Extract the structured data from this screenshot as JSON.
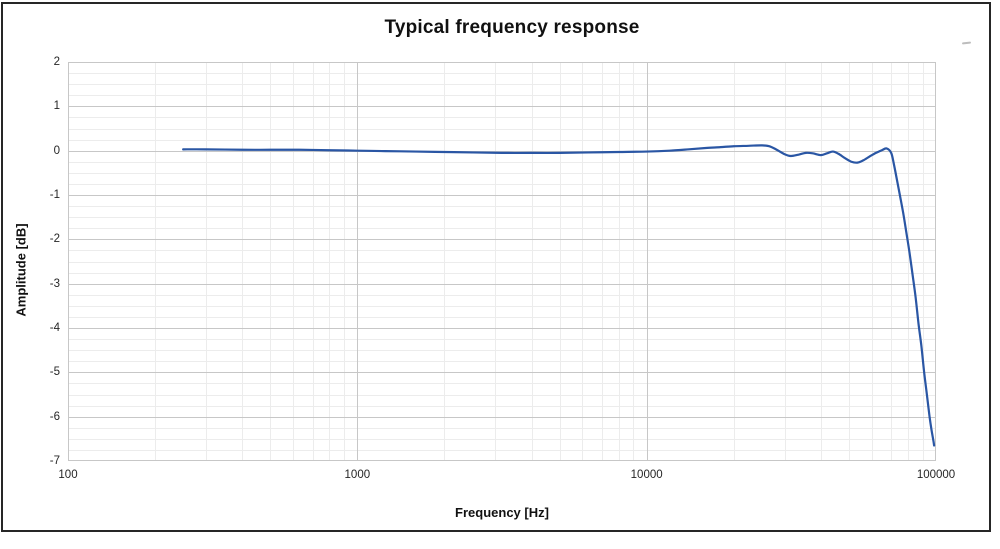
{
  "chart_data": {
    "type": "line",
    "title": "Typical frequency response",
    "xlabel": "Frequency [Hz]",
    "ylabel": "Amplitude [dB]",
    "x_scale": "log",
    "xlim": [
      100,
      100000
    ],
    "ylim": [
      -7,
      2
    ],
    "x_ticks": [
      {
        "value": 100,
        "label": "100"
      },
      {
        "value": 1000,
        "label": "1000"
      },
      {
        "value": 10000,
        "label": "10000"
      },
      {
        "value": 100000,
        "label": "100000"
      }
    ],
    "y_ticks": [
      {
        "value": 2,
        "label": "2"
      },
      {
        "value": 1,
        "label": "1"
      },
      {
        "value": 0,
        "label": "0"
      },
      {
        "value": -1,
        "label": "-1"
      },
      {
        "value": -2,
        "label": "-2"
      },
      {
        "value": -3,
        "label": "-3"
      },
      {
        "value": -4,
        "label": "-4"
      },
      {
        "value": -5,
        "label": "-5"
      },
      {
        "value": -6,
        "label": "-6"
      },
      {
        "value": -7,
        "label": "-7"
      }
    ],
    "y_minor_step": 0.25,
    "x_minor": "log-decade-multiples-2-to-9",
    "grid": {
      "on": true
    },
    "legend": "none",
    "colors": {
      "line": "#2a56a4",
      "major_grid": "#c7c7c7",
      "minor_grid": "#ececec",
      "plot_border": "#c7c7c7",
      "frame_border": "#262626",
      "text": "#262626",
      "background": "#ffffff"
    },
    "series": [
      {
        "name": "response",
        "points": [
          [
            250,
            0.03
          ],
          [
            300,
            0.03
          ],
          [
            400,
            0.02
          ],
          [
            500,
            0.02
          ],
          [
            630,
            0.02
          ],
          [
            800,
            0.01
          ],
          [
            1000,
            0.0
          ],
          [
            1250,
            -0.01
          ],
          [
            1600,
            -0.02
          ],
          [
            2000,
            -0.03
          ],
          [
            2500,
            -0.04
          ],
          [
            3150,
            -0.05
          ],
          [
            4000,
            -0.05
          ],
          [
            5000,
            -0.05
          ],
          [
            6300,
            -0.04
          ],
          [
            8000,
            -0.03
          ],
          [
            10000,
            -0.02
          ],
          [
            12000,
            0.0
          ],
          [
            14000,
            0.03
          ],
          [
            16000,
            0.06
          ],
          [
            18000,
            0.08
          ],
          [
            20000,
            0.1
          ],
          [
            22500,
            0.11
          ],
          [
            25000,
            0.12
          ],
          [
            26500,
            0.1
          ],
          [
            28000,
            0.03
          ],
          [
            30000,
            -0.08
          ],
          [
            31500,
            -0.12
          ],
          [
            33500,
            -0.09
          ],
          [
            35500,
            -0.05
          ],
          [
            37500,
            -0.06
          ],
          [
            40000,
            -0.1
          ],
          [
            42000,
            -0.06
          ],
          [
            44000,
            -0.02
          ],
          [
            46000,
            -0.07
          ],
          [
            48500,
            -0.17
          ],
          [
            51000,
            -0.25
          ],
          [
            53500,
            -0.27
          ],
          [
            56000,
            -0.22
          ],
          [
            59000,
            -0.13
          ],
          [
            62000,
            -0.05
          ],
          [
            65000,
            0.01
          ],
          [
            67500,
            0.05
          ],
          [
            70000,
            -0.05
          ],
          [
            71500,
            -0.3
          ],
          [
            73000,
            -0.6
          ],
          [
            75000,
            -1.0
          ],
          [
            77000,
            -1.4
          ],
          [
            79000,
            -1.85
          ],
          [
            81000,
            -2.3
          ],
          [
            83000,
            -2.8
          ],
          [
            85000,
            -3.3
          ],
          [
            87000,
            -3.9
          ],
          [
            89000,
            -4.4
          ],
          [
            91000,
            -5.0
          ],
          [
            93000,
            -5.5
          ],
          [
            95000,
            -6.0
          ],
          [
            96500,
            -6.3
          ],
          [
            98000,
            -6.55
          ],
          [
            98500,
            -6.65
          ]
        ]
      }
    ]
  }
}
